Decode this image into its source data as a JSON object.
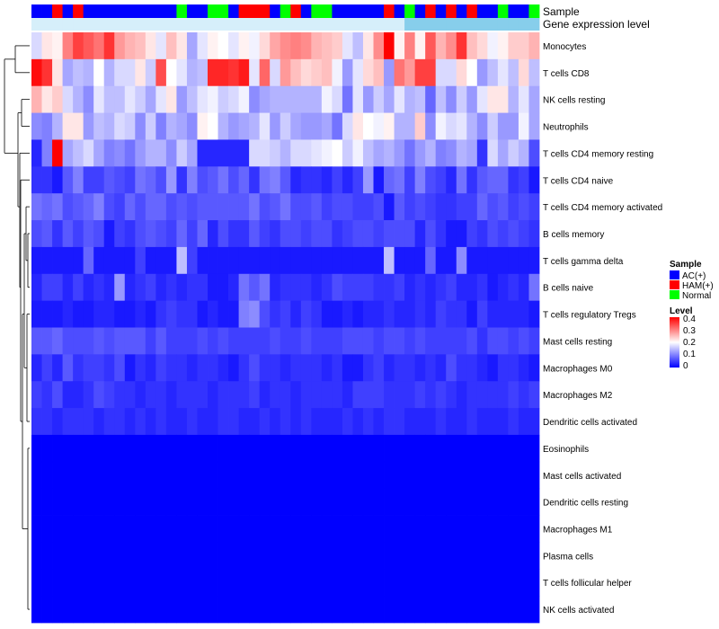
{
  "chart_data": {
    "type": "heatmap",
    "title": "",
    "annotation_tracks": [
      "Sample",
      "Gene expression level"
    ],
    "row_labels": [
      "Monocytes",
      "T cells CD8",
      "NK cells resting",
      "Neutrophils",
      "T cells CD4 memory resting",
      "T cells CD4 naive",
      "T cells CD4 memory activated",
      "B cells memory",
      "T cells gamma delta",
      "B cells naive",
      "T cells regulatory  Tregs",
      "Mast cells resting",
      "Macrophages M0",
      "Macrophages M2",
      "Dendritic cells activated",
      "Eosinophils",
      "Mast cells activated",
      "Dendritic cells resting",
      "Macrophages M1",
      "Plasma cells",
      "T cells follicular helper",
      "NK cells activated"
    ],
    "sample_groups": [
      "AC(+)",
      "AC(+)",
      "HAM(+)",
      "AC(+)",
      "HAM(+)",
      "AC(+)",
      "AC(+)",
      "AC(+)",
      "AC(+)",
      "AC(+)",
      "AC(+)",
      "AC(+)",
      "AC(+)",
      "AC(+)",
      "Normal",
      "AC(+)",
      "AC(+)",
      "Normal",
      "Normal",
      "AC(+)",
      "HAM(+)",
      "HAM(+)",
      "HAM(+)",
      "AC(+)",
      "Normal",
      "HAM(+)",
      "AC(+)",
      "Normal",
      "Normal",
      "AC(+)",
      "AC(+)",
      "AC(+)",
      "AC(+)",
      "AC(+)",
      "HAM(+)",
      "AC(+)",
      "Normal",
      "AC(+)",
      "HAM(+)",
      "AC(+)",
      "HAM(+)",
      "AC(+)",
      "HAM(+)",
      "AC(+)",
      "AC(+)",
      "Normal",
      "AC(+)",
      "AC(+)",
      "Normal"
    ],
    "expression_level_track": [
      1,
      1,
      1,
      1,
      1,
      1,
      1,
      1,
      1,
      1,
      1,
      1,
      1,
      1,
      1,
      1,
      1,
      1,
      1,
      1,
      1,
      1,
      1,
      1,
      1,
      1,
      1,
      1,
      1,
      1,
      1,
      1,
      1,
      1,
      1,
      1,
      2,
      2,
      2,
      2,
      2,
      2,
      2,
      2,
      2,
      2,
      2,
      2,
      2
    ],
    "matrix": [
      [
        0.17,
        0.22,
        0.21,
        0.3,
        0.35,
        0.33,
        0.31,
        0.36,
        0.28,
        0.26,
        0.25,
        0.22,
        0.18,
        0.25,
        0.22,
        0.13,
        0.18,
        0.21,
        0.2,
        0.18,
        0.21,
        0.19,
        0.23,
        0.27,
        0.29,
        0.3,
        0.29,
        0.26,
        0.25,
        0.24,
        0.18,
        0.15,
        0.22,
        0.29,
        0.4,
        0.21,
        0.3,
        0.21,
        0.33,
        0.26,
        0.29,
        0.36,
        0.25,
        0.23,
        0.19,
        0.21,
        0.24,
        0.24,
        0.26
      ],
      [
        0.39,
        0.36,
        0.22,
        0.13,
        0.15,
        0.14,
        0.2,
        0.14,
        0.17,
        0.17,
        0.22,
        0.16,
        0.34,
        0.2,
        0.18,
        0.14,
        0.15,
        0.37,
        0.37,
        0.36,
        0.38,
        0.18,
        0.32,
        0.17,
        0.28,
        0.25,
        0.23,
        0.24,
        0.25,
        0.19,
        0.12,
        0.18,
        0.23,
        0.25,
        0.12,
        0.31,
        0.28,
        0.35,
        0.35,
        0.17,
        0.17,
        0.23,
        0.2,
        0.12,
        0.15,
        0.18,
        0.15,
        0.23,
        0.15
      ],
      [
        0.26,
        0.22,
        0.24,
        0.17,
        0.14,
        0.11,
        0.18,
        0.15,
        0.15,
        0.18,
        0.16,
        0.13,
        0.18,
        0.22,
        0.12,
        0.15,
        0.18,
        0.19,
        0.16,
        0.17,
        0.19,
        0.11,
        0.13,
        0.14,
        0.14,
        0.14,
        0.14,
        0.14,
        0.19,
        0.17,
        0.09,
        0.18,
        0.12,
        0.16,
        0.13,
        0.18,
        0.14,
        0.15,
        0.08,
        0.15,
        0.11,
        0.16,
        0.12,
        0.18,
        0.22,
        0.22,
        0.14,
        0.18,
        0.13
      ],
      [
        0.11,
        0.1,
        0.14,
        0.22,
        0.22,
        0.12,
        0.15,
        0.14,
        0.17,
        0.16,
        0.11,
        0.16,
        0.1,
        0.14,
        0.13,
        0.11,
        0.21,
        0.2,
        0.14,
        0.12,
        0.13,
        0.14,
        0.18,
        0.12,
        0.16,
        0.13,
        0.12,
        0.12,
        0.13,
        0.09,
        0.17,
        0.22,
        0.2,
        0.19,
        0.21,
        0.14,
        0.14,
        0.24,
        0.11,
        0.19,
        0.17,
        0.18,
        0.14,
        0.11,
        0.16,
        0.12,
        0.12,
        0.19,
        0.13
      ],
      [
        0.03,
        0.1,
        0.4,
        0.13,
        0.15,
        0.17,
        0.13,
        0.1,
        0.11,
        0.09,
        0.12,
        0.14,
        0.14,
        0.11,
        0.16,
        0.13,
        0.03,
        0.03,
        0.03,
        0.03,
        0.03,
        0.17,
        0.17,
        0.16,
        0.14,
        0.17,
        0.17,
        0.18,
        0.19,
        0.2,
        0.16,
        0.19,
        0.15,
        0.13,
        0.14,
        0.12,
        0.09,
        0.12,
        0.14,
        0.1,
        0.11,
        0.14,
        0.13,
        0.04,
        0.17,
        0.13,
        0.16,
        0.14,
        0.06
      ],
      [
        0.04,
        0.04,
        0.02,
        0.07,
        0.1,
        0.05,
        0.05,
        0.07,
        0.06,
        0.05,
        0.09,
        0.08,
        0.06,
        0.12,
        0.04,
        0.1,
        0.06,
        0.07,
        0.09,
        0.06,
        0.08,
        0.04,
        0.09,
        0.1,
        0.07,
        0.03,
        0.04,
        0.04,
        0.03,
        0.05,
        0.03,
        0.05,
        0.12,
        0.02,
        0.08,
        0.09,
        0.05,
        0.1,
        0.06,
        0.05,
        0.03,
        0.09,
        0.04,
        0.07,
        0.08,
        0.08,
        0.04,
        0.05,
        0.02
      ],
      [
        0.09,
        0.08,
        0.09,
        0.06,
        0.07,
        0.08,
        0.1,
        0.06,
        0.05,
        0.08,
        0.06,
        0.08,
        0.08,
        0.06,
        0.07,
        0.06,
        0.07,
        0.07,
        0.07,
        0.07,
        0.07,
        0.09,
        0.06,
        0.07,
        0.09,
        0.06,
        0.06,
        0.07,
        0.05,
        0.06,
        0.06,
        0.05,
        0.05,
        0.06,
        0.02,
        0.07,
        0.05,
        0.06,
        0.05,
        0.04,
        0.04,
        0.05,
        0.05,
        0.08,
        0.06,
        0.07,
        0.05,
        0.06,
        0.05
      ],
      [
        0.06,
        0.07,
        0.04,
        0.07,
        0.05,
        0.07,
        0.06,
        0.02,
        0.05,
        0.04,
        0.06,
        0.07,
        0.06,
        0.05,
        0.08,
        0.05,
        0.08,
        0.03,
        0.06,
        0.04,
        0.04,
        0.07,
        0.05,
        0.04,
        0.06,
        0.06,
        0.05,
        0.06,
        0.06,
        0.04,
        0.05,
        0.06,
        0.06,
        0.05,
        0.06,
        0.06,
        0.06,
        0.03,
        0.06,
        0.04,
        0.02,
        0.02,
        0.05,
        0.04,
        0.06,
        0.05,
        0.06,
        0.05,
        0.04
      ],
      [
        0.02,
        0.02,
        0.02,
        0.02,
        0.02,
        0.08,
        0.02,
        0.02,
        0.02,
        0.02,
        0.05,
        0.02,
        0.02,
        0.02,
        0.15,
        0.05,
        0.02,
        0.02,
        0.02,
        0.02,
        0.02,
        0.02,
        0.02,
        0.02,
        0.02,
        0.02,
        0.02,
        0.02,
        0.02,
        0.02,
        0.02,
        0.02,
        0.02,
        0.02,
        0.15,
        0.02,
        0.02,
        0.02,
        0.08,
        0.02,
        0.02,
        0.11,
        0.02,
        0.02,
        0.02,
        0.02,
        0.02,
        0.02,
        0.02
      ],
      [
        0.03,
        0.05,
        0.05,
        0.03,
        0.05,
        0.03,
        0.04,
        0.03,
        0.12,
        0.03,
        0.04,
        0.05,
        0.03,
        0.04,
        0.03,
        0.04,
        0.04,
        0.02,
        0.02,
        0.03,
        0.09,
        0.07,
        0.09,
        0.03,
        0.04,
        0.04,
        0.04,
        0.03,
        0.04,
        0.06,
        0.05,
        0.05,
        0.05,
        0.04,
        0.04,
        0.05,
        0.03,
        0.04,
        0.03,
        0.04,
        0.05,
        0.03,
        0.03,
        0.04,
        0.02,
        0.03,
        0.04,
        0.03,
        0.09
      ],
      [
        0.02,
        0.02,
        0.02,
        0.03,
        0.02,
        0.02,
        0.03,
        0.03,
        0.02,
        0.02,
        0.03,
        0.02,
        0.04,
        0.05,
        0.04,
        0.04,
        0.02,
        0.03,
        0.02,
        0.02,
        0.1,
        0.11,
        0.06,
        0.04,
        0.05,
        0.03,
        0.05,
        0.04,
        0.02,
        0.02,
        0.03,
        0.02,
        0.03,
        0.03,
        0.04,
        0.03,
        0.03,
        0.04,
        0.03,
        0.05,
        0.04,
        0.04,
        0.02,
        0.05,
        0.03,
        0.03,
        0.03,
        0.03,
        0.02
      ],
      [
        0.07,
        0.07,
        0.08,
        0.06,
        0.06,
        0.06,
        0.07,
        0.06,
        0.07,
        0.07,
        0.07,
        0.05,
        0.07,
        0.05,
        0.05,
        0.05,
        0.06,
        0.05,
        0.06,
        0.05,
        0.05,
        0.05,
        0.05,
        0.06,
        0.05,
        0.05,
        0.06,
        0.05,
        0.05,
        0.05,
        0.06,
        0.06,
        0.06,
        0.05,
        0.06,
        0.06,
        0.05,
        0.06,
        0.05,
        0.05,
        0.05,
        0.05,
        0.06,
        0.04,
        0.06,
        0.06,
        0.05,
        0.06,
        0.05
      ],
      [
        0.03,
        0.05,
        0.03,
        0.07,
        0.04,
        0.05,
        0.05,
        0.04,
        0.06,
        0.02,
        0.04,
        0.03,
        0.05,
        0.04,
        0.04,
        0.03,
        0.04,
        0.04,
        0.03,
        0.02,
        0.04,
        0.06,
        0.04,
        0.04,
        0.03,
        0.04,
        0.04,
        0.04,
        0.03,
        0.04,
        0.02,
        0.02,
        0.04,
        0.05,
        0.03,
        0.04,
        0.04,
        0.03,
        0.04,
        0.03,
        0.06,
        0.04,
        0.04,
        0.03,
        0.02,
        0.04,
        0.04,
        0.03,
        0.02
      ],
      [
        0.05,
        0.04,
        0.06,
        0.03,
        0.03,
        0.04,
        0.06,
        0.05,
        0.04,
        0.04,
        0.03,
        0.04,
        0.04,
        0.03,
        0.04,
        0.04,
        0.04,
        0.03,
        0.04,
        0.04,
        0.04,
        0.05,
        0.03,
        0.04,
        0.04,
        0.03,
        0.04,
        0.04,
        0.04,
        0.04,
        0.03,
        0.05,
        0.05,
        0.05,
        0.04,
        0.04,
        0.04,
        0.05,
        0.04,
        0.05,
        0.04,
        0.03,
        0.04,
        0.04,
        0.04,
        0.04,
        0.05,
        0.04,
        0.05
      ],
      [
        0.04,
        0.04,
        0.03,
        0.04,
        0.04,
        0.04,
        0.03,
        0.04,
        0.04,
        0.03,
        0.04,
        0.03,
        0.04,
        0.03,
        0.03,
        0.04,
        0.03,
        0.03,
        0.04,
        0.04,
        0.03,
        0.03,
        0.04,
        0.03,
        0.04,
        0.03,
        0.04,
        0.03,
        0.03,
        0.03,
        0.04,
        0.03,
        0.04,
        0.03,
        0.04,
        0.04,
        0.03,
        0.03,
        0.03,
        0.04,
        0.03,
        0.03,
        0.04,
        0.03,
        0.03,
        0.03,
        0.04,
        0.03,
        0.03
      ],
      [
        0,
        0,
        0,
        0,
        0,
        0,
        0,
        0,
        0,
        0,
        0,
        0,
        0,
        0,
        0,
        0,
        0,
        0,
        0,
        0,
        0,
        0,
        0,
        0,
        0,
        0,
        0,
        0,
        0,
        0,
        0,
        0,
        0,
        0,
        0,
        0,
        0,
        0,
        0,
        0,
        0,
        0,
        0,
        0,
        0,
        0,
        0,
        0,
        0
      ],
      [
        0,
        0,
        0,
        0,
        0,
        0,
        0,
        0,
        0,
        0,
        0,
        0,
        0,
        0,
        0,
        0,
        0,
        0,
        0,
        0,
        0,
        0,
        0,
        0,
        0,
        0,
        0,
        0,
        0,
        0,
        0,
        0,
        0,
        0,
        0,
        0,
        0,
        0,
        0,
        0,
        0,
        0,
        0,
        0,
        0,
        0,
        0,
        0,
        0
      ],
      [
        0,
        0,
        0,
        0,
        0,
        0,
        0,
        0,
        0,
        0,
        0,
        0,
        0,
        0,
        0,
        0,
        0,
        0,
        0,
        0,
        0,
        0,
        0,
        0,
        0,
        0,
        0,
        0,
        0,
        0,
        0,
        0,
        0,
        0,
        0,
        0,
        0,
        0,
        0,
        0,
        0,
        0,
        0,
        0,
        0,
        0,
        0,
        0,
        0
      ],
      [
        0,
        0,
        0,
        0,
        0,
        0,
        0,
        0,
        0,
        0,
        0,
        0,
        0,
        0,
        0,
        0,
        0,
        0,
        0,
        0,
        0,
        0,
        0,
        0,
        0,
        0,
        0,
        0,
        0,
        0,
        0,
        0,
        0,
        0,
        0,
        0,
        0,
        0,
        0,
        0,
        0,
        0,
        0,
        0,
        0,
        0,
        0,
        0,
        0
      ],
      [
        0,
        0,
        0,
        0,
        0,
        0,
        0,
        0,
        0,
        0,
        0,
        0,
        0,
        0,
        0,
        0,
        0,
        0,
        0,
        0,
        0,
        0,
        0,
        0,
        0,
        0,
        0,
        0,
        0,
        0,
        0,
        0,
        0,
        0,
        0,
        0,
        0,
        0,
        0,
        0,
        0,
        0,
        0,
        0,
        0,
        0,
        0,
        0,
        0
      ],
      [
        0,
        0,
        0,
        0,
        0,
        0,
        0,
        0,
        0,
        0,
        0,
        0,
        0,
        0,
        0,
        0,
        0,
        0,
        0,
        0,
        0,
        0,
        0,
        0,
        0,
        0,
        0,
        0,
        0,
        0,
        0,
        0,
        0,
        0,
        0,
        0,
        0,
        0,
        0,
        0,
        0,
        0,
        0,
        0,
        0,
        0,
        0,
        0,
        0
      ],
      [
        0,
        0,
        0,
        0,
        0,
        0,
        0,
        0,
        0,
        0,
        0,
        0,
        0,
        0,
        0,
        0,
        0,
        0,
        0,
        0,
        0,
        0,
        0,
        0,
        0,
        0,
        0,
        0,
        0,
        0,
        0,
        0,
        0,
        0,
        0,
        0,
        0,
        0,
        0,
        0,
        0,
        0,
        0,
        0,
        0,
        0,
        0,
        0,
        0
      ]
    ],
    "legend_sample": {
      "title": "Sample",
      "entries": [
        {
          "label": "AC(+)",
          "color": "#0000ff"
        },
        {
          "label": "HAM(+)",
          "color": "#ff0000"
        },
        {
          "label": "Normal",
          "color": "#00ff00"
        }
      ]
    },
    "legend_level": {
      "title": "Level",
      "ticks": [
        "0.4",
        "0.3",
        "0.2",
        "0.1",
        "0"
      ],
      "range": [
        0,
        0.4
      ],
      "colors": {
        "low": "#0000ff",
        "mid": "#ffffff",
        "high": "#ff0000"
      }
    },
    "expression_track_colors": {
      "1": "#d6effa",
      "2": "#87ceeb"
    },
    "dendrogram": "left"
  }
}
